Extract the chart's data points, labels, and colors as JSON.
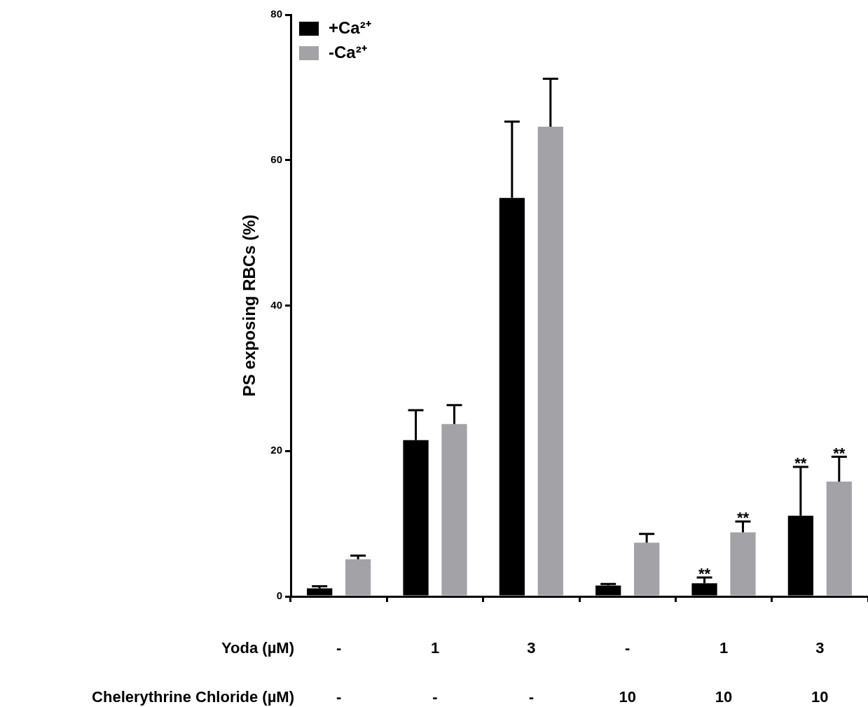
{
  "chart_data": {
    "type": "bar",
    "ylabel": "PS exposing RBCs (%)",
    "categories": [
      [
        "-",
        "-"
      ],
      [
        "1",
        "-"
      ],
      [
        "3",
        "-"
      ],
      [
        "-",
        "10"
      ],
      [
        "1",
        "10"
      ],
      [
        "3",
        "10"
      ]
    ],
    "annotations": [
      "Yoda (µM)",
      "Chelerythrine Chloride (µM)"
    ],
    "series": [
      {
        "name": "+Ca²⁺",
        "color": "#000000",
        "values": [
          1.1,
          21.5,
          54.8,
          1.5,
          1.8,
          11.1
        ],
        "errors": [
          [
            1.1,
            1.4
          ],
          [
            21.5,
            25.6
          ],
          [
            54.8,
            65.3
          ],
          [
            1.5,
            1.7
          ],
          [
            1.8,
            2.6
          ],
          [
            11.1,
            17.8
          ]
        ],
        "value_labels": [
          null,
          null,
          null,
          null,
          "**",
          "**"
        ]
      },
      {
        "name": "-Ca²⁺",
        "color": "#a3a3a7",
        "values": [
          5.1,
          23.7,
          64.6,
          7.4,
          8.8,
          15.8
        ],
        "errors": [
          [
            5.1,
            5.6
          ],
          [
            23.7,
            26.3
          ],
          [
            64.6,
            71.2
          ],
          [
            7.4,
            8.6
          ],
          [
            8.8,
            10.3
          ],
          [
            15.8,
            19.2
          ]
        ],
        "value_labels": [
          null,
          null,
          null,
          null,
          "**",
          "**"
        ]
      }
    ],
    "ylim": [
      0,
      80
    ],
    "yticks": [
      0,
      20,
      40,
      60,
      80
    ],
    "grid": false,
    "legend": "top left"
  }
}
